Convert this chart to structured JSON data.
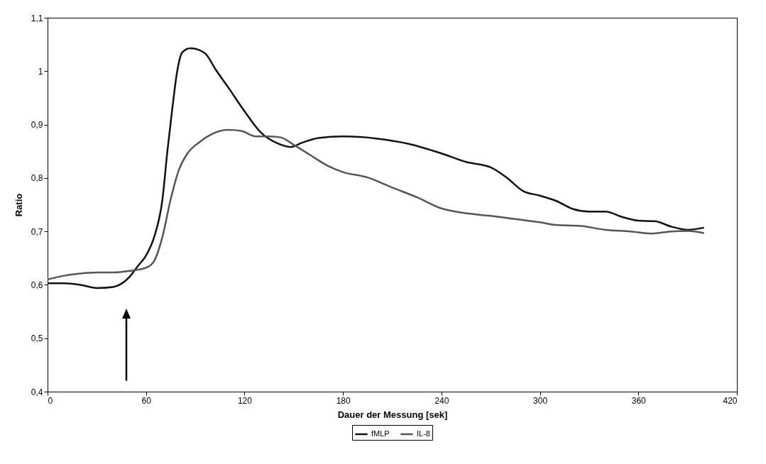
{
  "chart_data": {
    "type": "line",
    "xlabel": "Dauer der Messung [sek]",
    "ylabel": "Ratio",
    "xlim": [
      0,
      420
    ],
    "xticks": [
      0,
      60,
      120,
      180,
      240,
      300,
      360,
      420
    ],
    "ylim": [
      0.4,
      1.1
    ],
    "yticks": [
      {
        "value": 0.4,
        "label": "0,4"
      },
      {
        "value": 0.5,
        "label": "0,5"
      },
      {
        "value": 0.6,
        "label": "0,6"
      },
      {
        "value": 0.7,
        "label": "0,7"
      },
      {
        "value": 0.8,
        "label": "0,8"
      },
      {
        "value": 0.9,
        "label": "0,9"
      },
      1,
      {
        "value": 1.1,
        "label": "1,1"
      }
    ],
    "grid": false,
    "legend": "bottom",
    "marker": "none",
    "line_style": "solid",
    "series": [
      {
        "name": "fMLP",
        "color": "#111111",
        "x": [
          0,
          10,
          20,
          30,
          40,
          45,
          50,
          55,
          60,
          65,
          70,
          73,
          76,
          79,
          82,
          87,
          92,
          97,
          102,
          110,
          120,
          130,
          140,
          148,
          155,
          165,
          180,
          200,
          220,
          240,
          255,
          270,
          280,
          290,
          300,
          310,
          320,
          330,
          340,
          350,
          360,
          370,
          380,
          390,
          400
        ],
        "values": [
          0.603,
          0.603,
          0.6,
          0.594,
          0.596,
          0.602,
          0.615,
          0.635,
          0.655,
          0.69,
          0.76,
          0.85,
          0.93,
          1.0,
          1.035,
          1.043,
          1.04,
          1.03,
          1.005,
          0.97,
          0.925,
          0.885,
          0.865,
          0.858,
          0.866,
          0.875,
          0.878,
          0.874,
          0.864,
          0.846,
          0.83,
          0.82,
          0.8,
          0.775,
          0.767,
          0.757,
          0.742,
          0.737,
          0.737,
          0.727,
          0.72,
          0.719,
          0.709,
          0.703,
          0.707
        ]
      },
      {
        "name": "IL-8",
        "color": "#555555",
        "x": [
          0,
          10,
          20,
          30,
          40,
          50,
          60,
          65,
          70,
          75,
          80,
          85,
          92,
          100,
          110,
          118,
          127,
          135,
          142,
          150,
          160,
          170,
          180,
          195,
          210,
          225,
          240,
          255,
          270,
          285,
          300,
          310,
          325,
          340,
          355,
          368,
          380,
          390,
          400
        ],
        "values": [
          0.61,
          0.617,
          0.621,
          0.623,
          0.623,
          0.626,
          0.632,
          0.645,
          0.69,
          0.76,
          0.815,
          0.845,
          0.866,
          0.882,
          0.89,
          0.888,
          0.878,
          0.878,
          0.876,
          0.862,
          0.843,
          0.824,
          0.811,
          0.801,
          0.782,
          0.764,
          0.743,
          0.734,
          0.729,
          0.723,
          0.717,
          0.712,
          0.71,
          0.703,
          0.7,
          0.696,
          0.7,
          0.701,
          0.697
        ]
      }
    ]
  }
}
